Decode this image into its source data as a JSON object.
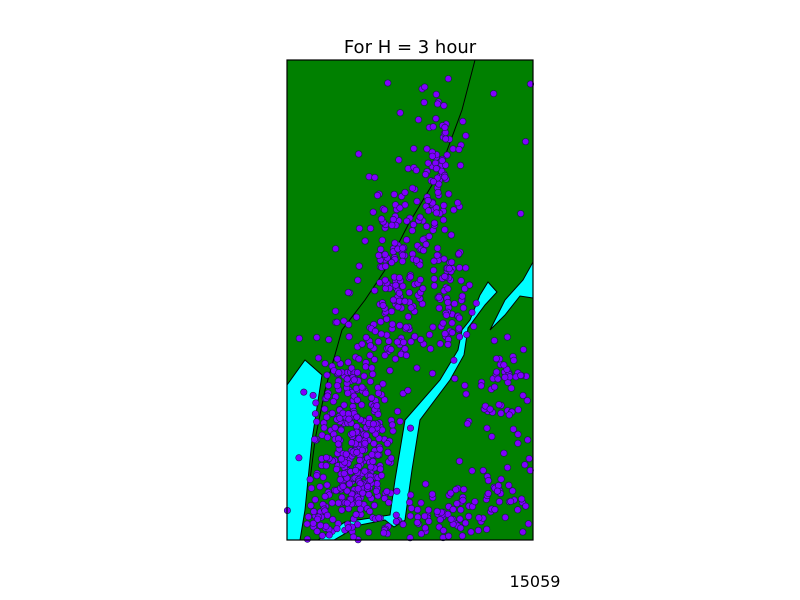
{
  "chart_data": {
    "type": "scatter",
    "title": "For H = 3 hour",
    "xlabel": "",
    "ylabel": "",
    "axes_visible": false,
    "grid": false,
    "legend": "none",
    "background": "map",
    "annotation": "15059",
    "colors": {
      "land": "#008000",
      "water": "#00ffff",
      "point_fill": "#7f00ff",
      "point_stroke": "#1a1a4d",
      "frame": "#000000"
    },
    "point_cloud_note_free": true,
    "clusters": [
      {
        "cx": 0.28,
        "cy": 0.8,
        "sx": 0.08,
        "sy": 0.12,
        "n": 420
      },
      {
        "cx": 0.45,
        "cy": 0.45,
        "sx": 0.07,
        "sy": 0.1,
        "n": 170
      },
      {
        "cx": 0.62,
        "cy": 0.22,
        "sx": 0.05,
        "sy": 0.1,
        "n": 90
      },
      {
        "cx": 0.65,
        "cy": 0.5,
        "sx": 0.05,
        "sy": 0.07,
        "n": 80
      },
      {
        "cx": 0.6,
        "cy": 0.95,
        "sx": 0.08,
        "sy": 0.03,
        "n": 70
      },
      {
        "cx": 0.88,
        "cy": 0.67,
        "sx": 0.07,
        "sy": 0.06,
        "n": 55
      },
      {
        "cx": 0.88,
        "cy": 0.9,
        "sx": 0.08,
        "sy": 0.05,
        "n": 45
      },
      {
        "cx": 0.14,
        "cy": 0.95,
        "sx": 0.03,
        "sy": 0.04,
        "n": 30
      }
    ],
    "outliers": [
      [
        0.46,
        0.11
      ],
      [
        0.05,
        0.58
      ],
      [
        0.84,
        0.07
      ],
      [
        0.97,
        0.17
      ],
      [
        0.95,
        0.32
      ],
      [
        0.99,
        0.05
      ]
    ]
  }
}
